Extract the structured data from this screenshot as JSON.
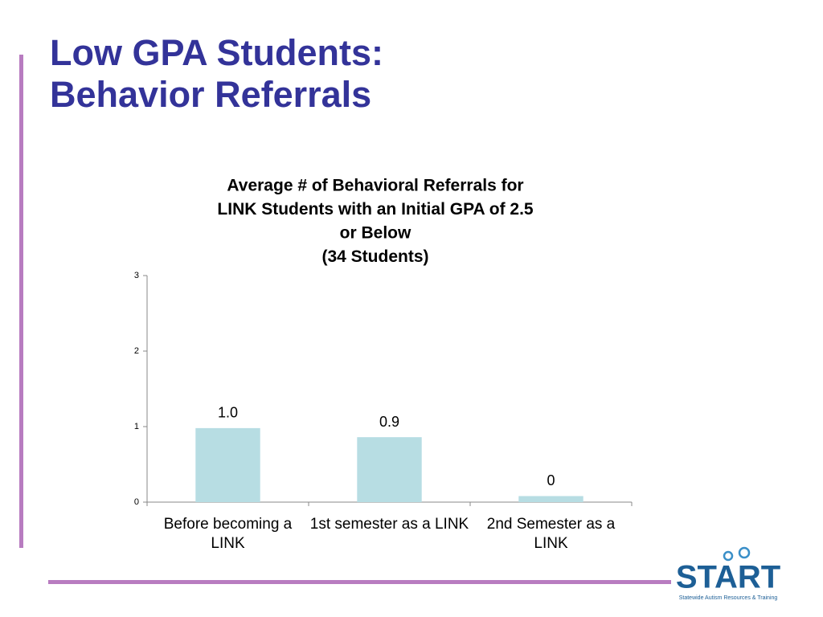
{
  "slide": {
    "title": [
      "Low GPA Students:",
      "Behavior Referrals"
    ],
    "logo": {
      "name": "START",
      "tagline": "Statewide Autism Resources & Training"
    }
  },
  "chart_data": {
    "type": "bar",
    "title": [
      "Average # of Behavioral Referrals for",
      "LINK Students with an Initial GPA of 2.5",
      "or Below",
      "(34 Students)"
    ],
    "categories": [
      "Before becoming a LINK",
      "1st semester as a LINK",
      "2nd Semester as a LINK"
    ],
    "values": [
      0.98,
      0.86,
      0.08
    ],
    "value_labels": [
      "1.0",
      "0.9",
      "0"
    ],
    "color": "#b7dde3",
    "ylim": [
      0,
      3
    ],
    "yticks": [
      0,
      1,
      2,
      3
    ],
    "grid": false
  }
}
